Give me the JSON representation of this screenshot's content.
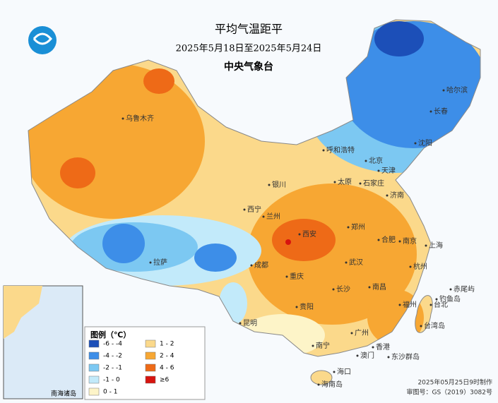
{
  "header": {
    "title": "平均气温距平",
    "date_range": "2025年5月18日至2025年5月24日",
    "agency": "中央气象台"
  },
  "legend": {
    "title": "图例（℃）",
    "items": [
      {
        "label": "-6 - -4",
        "color": "#1c4fb8"
      },
      {
        "label": "1 - 2",
        "color": "#fbd98b"
      },
      {
        "label": "-4 - -2",
        "color": "#3d8ee8"
      },
      {
        "label": "2 - 4",
        "color": "#f7a733"
      },
      {
        "label": "-2 - -1",
        "color": "#7cc8f2"
      },
      {
        "label": "4 - 6",
        "color": "#ee6a17"
      },
      {
        "label": "-1 - 0",
        "color": "#c2eafa"
      },
      {
        "label": "≥6",
        "color": "#d7140f"
      },
      {
        "label": "0 - 1",
        "color": "#fdf4c8"
      }
    ]
  },
  "cities": [
    "乌鲁木齐",
    "哈尔滨",
    "长春",
    "沈阳",
    "呼和浩特",
    "北京",
    "天津",
    "石家庄",
    "太原",
    "银川",
    "济南",
    "西宁",
    "兰州",
    "郑州",
    "西安",
    "合肥",
    "南京",
    "上海",
    "成都",
    "武汉",
    "杭州",
    "拉萨",
    "重庆",
    "长沙",
    "南昌",
    "台北",
    "福州",
    "贵阳",
    "昆明",
    "广州",
    "南宁",
    "香港",
    "澳门",
    "海口",
    "东沙群岛",
    "赤尾屿",
    "钓鱼岛",
    "台湾岛",
    "海南岛"
  ],
  "inset": {
    "label": "南海诸岛"
  },
  "footer": {
    "made": "2025年05月25日9时制作",
    "approval": "审图号：GS（2019）3082号"
  }
}
